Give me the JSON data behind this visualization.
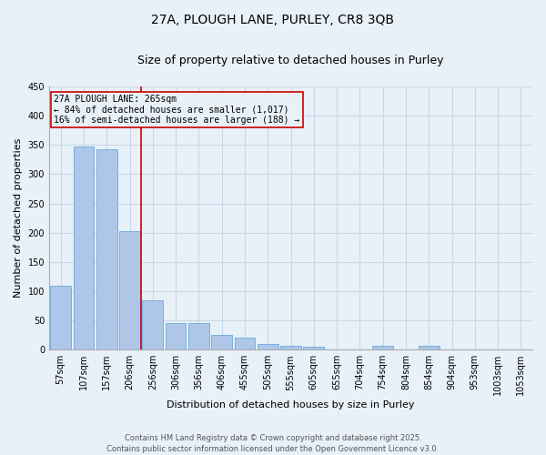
{
  "title": "27A, PLOUGH LANE, PURLEY, CR8 3QB",
  "subtitle": "Size of property relative to detached houses in Purley",
  "xlabel": "Distribution of detached houses by size in Purley",
  "ylabel": "Number of detached properties",
  "categories": [
    "57sqm",
    "107sqm",
    "157sqm",
    "206sqm",
    "256sqm",
    "306sqm",
    "356sqm",
    "406sqm",
    "455sqm",
    "505sqm",
    "555sqm",
    "605sqm",
    "655sqm",
    "704sqm",
    "754sqm",
    "804sqm",
    "854sqm",
    "904sqm",
    "953sqm",
    "1003sqm",
    "1053sqm"
  ],
  "values": [
    110,
    348,
    343,
    203,
    85,
    46,
    46,
    25,
    20,
    9,
    7,
    5,
    0,
    0,
    6,
    0,
    6,
    0,
    0,
    0,
    0
  ],
  "bar_color": "#aec6e8",
  "bar_edge_color": "#5a9fd4",
  "grid_color": "#c8d8e8",
  "background_color": "#e8f0f8",
  "vline_index": 4,
  "vline_color": "#cc0000",
  "annotation_text": "27A PLOUGH LANE: 265sqm\n← 84% of detached houses are smaller (1,017)\n16% of semi-detached houses are larger (188) →",
  "annotation_box_color": "#cc0000",
  "annotation_font_size": 7.0,
  "ylim": [
    0,
    450
  ],
  "yticks": [
    0,
    50,
    100,
    150,
    200,
    250,
    300,
    350,
    400,
    450
  ],
  "footer_text": "Contains HM Land Registry data © Crown copyright and database right 2025.\nContains public sector information licensed under the Open Government Licence v3.0.",
  "title_fontsize": 10,
  "subtitle_fontsize": 9,
  "xlabel_fontsize": 8,
  "ylabel_fontsize": 8,
  "tick_fontsize": 7,
  "footer_fontsize": 6
}
